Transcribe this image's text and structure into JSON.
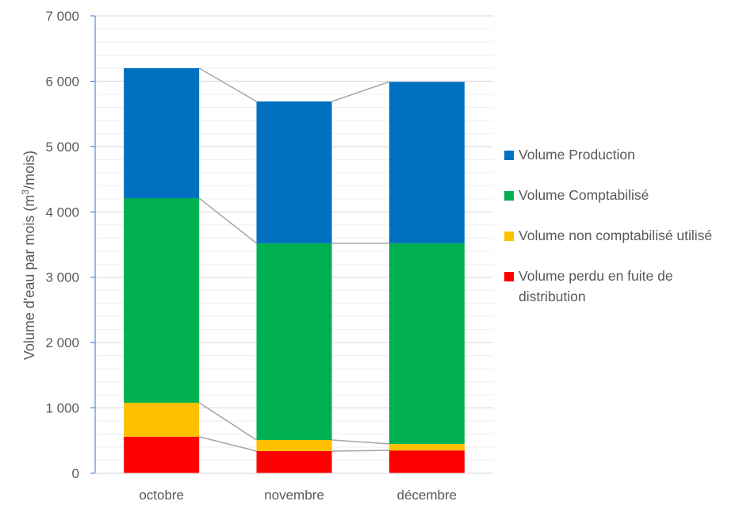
{
  "chart_data": {
    "type": "bar",
    "stacked": true,
    "categories": [
      "octobre",
      "novembre",
      "décembre"
    ],
    "ylabel_main": "Volume d'eau par mois (m",
    "ylabel_sup": "3",
    "ylabel_end": "/mois)",
    "ylim": [
      0,
      7000
    ],
    "yticks": [
      {
        "value": 0,
        "label": "0"
      },
      {
        "value": 1000,
        "label": "1 000"
      },
      {
        "value": 2000,
        "label": "2 000"
      },
      {
        "value": 3000,
        "label": "3 000"
      },
      {
        "value": 4000,
        "label": "4 000"
      },
      {
        "value": 5000,
        "label": "5 000"
      },
      {
        "value": 6000,
        "label": "6 000"
      },
      {
        "value": 7000,
        "label": "7 000"
      }
    ],
    "minor_grid_step": 200,
    "grid": true,
    "series_lines": true,
    "legend_position": "right",
    "series": [
      {
        "name": "Volume perdu en fuite de distribution",
        "color": "#FF0000",
        "values": [
          560,
          340,
          350
        ]
      },
      {
        "name": "Volume non comptabilisé utilisé",
        "color": "#FFC000",
        "values": [
          520,
          170,
          100
        ]
      },
      {
        "name": "Volume Comptabilisé",
        "color": "#00B050",
        "values": [
          3130,
          3010,
          3070
        ]
      },
      {
        "name": "Volume Production",
        "color": "#0070C0",
        "values": [
          1990,
          2170,
          2470
        ]
      }
    ],
    "legend_order": [
      3,
      2,
      1,
      0
    ]
  }
}
